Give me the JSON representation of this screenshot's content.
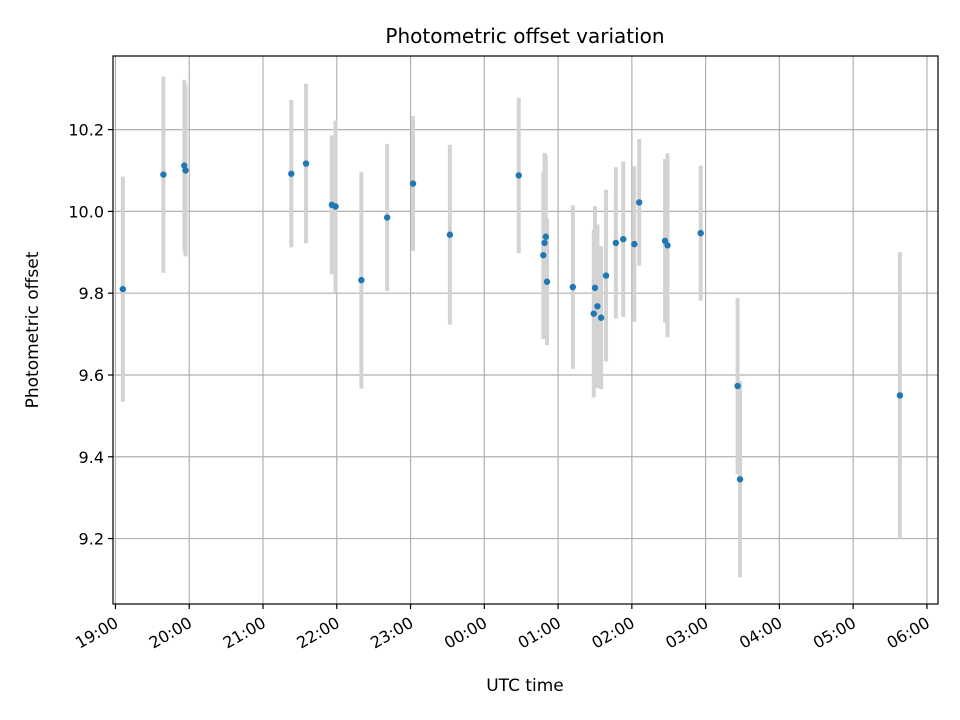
{
  "chart_data": {
    "type": "scatter",
    "title": "Photometric offset variation",
    "xlabel": "UTC time",
    "ylabel": "Photometric offset",
    "x_tick_labels": [
      "19:00",
      "20:00",
      "21:00",
      "22:00",
      "23:00",
      "00:00",
      "01:00",
      "02:00",
      "03:00",
      "04:00",
      "05:00",
      "06:00"
    ],
    "y_tick_labels": [
      "9.2",
      "9.4",
      "9.6",
      "9.8",
      "10.0",
      "10.2"
    ],
    "y_ticks": [
      9.2,
      9.4,
      9.6,
      9.8,
      10.0,
      10.2
    ],
    "xlim": [
      "18:58",
      "06:09"
    ],
    "ylim": [
      9.04,
      10.38
    ],
    "grid": true,
    "colors": {
      "point": "#1f77b4",
      "errorbar": "#d3d3d3",
      "grid": "#b0b0b0"
    },
    "points": [
      {
        "x": "19:06",
        "y": 9.81,
        "yerr": 0.275
      },
      {
        "x": "19:39",
        "y": 10.09,
        "yerr": 0.24
      },
      {
        "x": "19:56",
        "y": 10.112,
        "yerr": 0.21
      },
      {
        "x": "19:57",
        "y": 10.1,
        "yerr": 0.21
      },
      {
        "x": "21:23",
        "y": 10.092,
        "yerr": 0.18
      },
      {
        "x": "21:35",
        "y": 10.117,
        "yerr": 0.195
      },
      {
        "x": "21:56",
        "y": 10.016,
        "yerr": 0.17
      },
      {
        "x": "21:59",
        "y": 10.012,
        "yerr": 0.21
      },
      {
        "x": "22:20",
        "y": 9.832,
        "yerr": 0.265
      },
      {
        "x": "22:41",
        "y": 9.985,
        "yerr": 0.18
      },
      {
        "x": "23:02",
        "y": 10.068,
        "yerr": 0.165
      },
      {
        "x": "23:32",
        "y": 9.943,
        "yerr": 0.22
      },
      {
        "x": "00:28",
        "y": 10.088,
        "yerr": 0.19
      },
      {
        "x": "00:48",
        "y": 9.893,
        "yerr": 0.205
      },
      {
        "x": "00:49",
        "y": 9.923,
        "yerr": 0.22
      },
      {
        "x": "00:50",
        "y": 9.938,
        "yerr": 0.2
      },
      {
        "x": "00:51",
        "y": 9.828,
        "yerr": 0.155
      },
      {
        "x": "01:12",
        "y": 9.815,
        "yerr": 0.2
      },
      {
        "x": "01:29",
        "y": 9.75,
        "yerr": 0.205
      },
      {
        "x": "01:30",
        "y": 9.813,
        "yerr": 0.2
      },
      {
        "x": "01:32",
        "y": 9.768,
        "yerr": 0.2
      },
      {
        "x": "01:35",
        "y": 9.74,
        "yerr": 0.175
      },
      {
        "x": "01:39",
        "y": 9.843,
        "yerr": 0.21
      },
      {
        "x": "01:47",
        "y": 9.923,
        "yerr": 0.185
      },
      {
        "x": "01:53",
        "y": 9.932,
        "yerr": 0.19
      },
      {
        "x": "02:02",
        "y": 9.92,
        "yerr": 0.19
      },
      {
        "x": "02:06",
        "y": 10.022,
        "yerr": 0.155
      },
      {
        "x": "02:27",
        "y": 9.928,
        "yerr": 0.2
      },
      {
        "x": "02:29",
        "y": 9.917,
        "yerr": 0.225
      },
      {
        "x": "02:56",
        "y": 9.947,
        "yerr": 0.165
      },
      {
        "x": "03:26",
        "y": 9.573,
        "yerr": 0.215
      },
      {
        "x": "03:28",
        "y": 9.345,
        "yerr": 0.24
      },
      {
        "x": "05:38",
        "y": 9.55,
        "yerr": 0.35
      }
    ]
  }
}
